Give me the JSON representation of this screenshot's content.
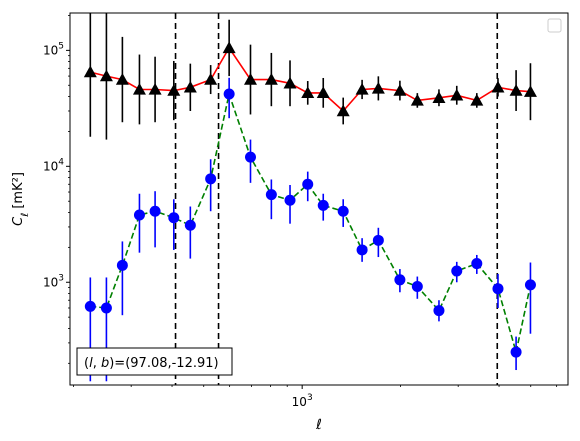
{
  "chart_data": {
    "type": "scatter",
    "title": "",
    "xlabel": "ℓ",
    "ylabel": "C_ℓ  [mK²]",
    "xscale": "log",
    "yscale": "log",
    "xlim": [
      195,
      6500
    ],
    "ylim": [
      130,
      210000
    ],
    "grid": false,
    "legend": {
      "placement": "top-right",
      "entries": []
    },
    "xticks": [
      {
        "value": 1000,
        "label": "10^3"
      }
    ],
    "yticks": [
      {
        "value": 1000,
        "label": "10^3"
      },
      {
        "value": 10000,
        "label": "10^4"
      },
      {
        "value": 100000,
        "label": "10^5"
      }
    ],
    "annotation": "(l, b)=(97.08,-12.91)",
    "vlines": [
      410,
      555,
      3950
    ],
    "series": [
      {
        "marker": "triangle",
        "marker_color": "#000000",
        "line_color": "#ff0000",
        "line_style": "solid",
        "errorbar_color": "#000000",
        "x": [
          225,
          252,
          282,
          318,
          355,
          405,
          455,
          525,
          598,
          695,
          805,
          918,
          1040,
          1160,
          1335,
          1525,
          1710,
          1990,
          2250,
          2620,
          2970,
          3420,
          3970,
          4510,
          4990
        ],
        "y": [
          65000,
          60000,
          56000,
          46000,
          46000,
          45000,
          48000,
          56000,
          105000,
          56000,
          56000,
          52000,
          43000,
          43000,
          30000,
          46000,
          47000,
          45000,
          37000,
          39000,
          41000,
          37000,
          48000,
          45000,
          44000
        ],
        "y_low": [
          18000,
          17000,
          24000,
          23000,
          24000,
          25000,
          30000,
          42000,
          60000,
          28000,
          33000,
          33000,
          34000,
          32000,
          23000,
          38000,
          37000,
          37000,
          32000,
          33000,
          34000,
          32000,
          40000,
          30000,
          25000
        ]
      },
      {
        "marker": "circle",
        "marker_color": "#0000ff",
        "line_color": "#008000",
        "line_style": "dashed",
        "errorbar_color": "#0000ff",
        "x": [
          225,
          252,
          282,
          318,
          355,
          405,
          455,
          525,
          598,
          695,
          805,
          918,
          1040,
          1160,
          1335,
          1525,
          1710,
          1990,
          2250,
          2620,
          2970,
          3420,
          3970,
          4510,
          4990
        ],
        "y": [
          620,
          600,
          1400,
          3800,
          4100,
          3600,
          3100,
          7800,
          42000,
          12000,
          5700,
          5100,
          7000,
          4600,
          4100,
          1900,
          2300,
          1050,
          920,
          570,
          1250,
          1450,
          880,
          250,
          950
        ],
        "y_low": [
          140,
          140,
          520,
          1800,
          2000,
          1900,
          1600,
          4100,
          26000,
          7200,
          3500,
          3200,
          5000,
          3400,
          3000,
          1500,
          1650,
          820,
          720,
          460,
          1000,
          1180,
          600,
          175,
          360
        ],
        "y_high": [
          1100,
          1100,
          2250,
          5800,
          6100,
          5200,
          4500,
          11500,
          58000,
          17000,
          7700,
          6900,
          9000,
          5800,
          5200,
          2400,
          2950,
          1300,
          1120,
          700,
          1500,
          1720,
          1180,
          340,
          1480
        ]
      }
    ]
  }
}
